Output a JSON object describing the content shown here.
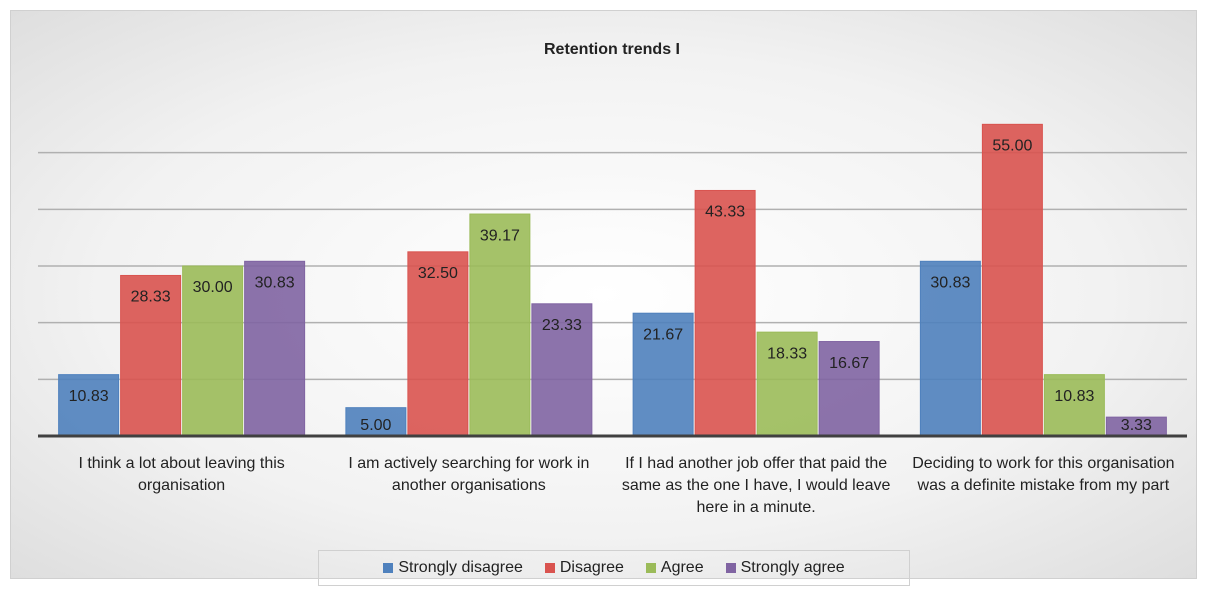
{
  "chart_data": {
    "type": "bar",
    "title": "Retention trends I",
    "categories": [
      "I think a lot about leaving this organisation",
      "I am actively searching for work in another organisations",
      "If I had another job offer that paid the same as the one I have, I would leave here in a minute.",
      "Deciding to work for this organisation was a definite mistake from my part"
    ],
    "series": [
      {
        "name": "Strongly disagree",
        "color": "#4f81bd",
        "values": [
          10.83,
          5,
          21.67,
          30.83
        ],
        "value_labels": [
          "10.83",
          "5.00",
          "21.67",
          "30.83"
        ]
      },
      {
        "name": "Disagree",
        "color": "#d9534f",
        "values": [
          28.33,
          32.5,
          43.33,
          55
        ],
        "value_labels": [
          "28.33",
          "32.50",
          "43.33",
          "55.00"
        ]
      },
      {
        "name": "Agree",
        "color": "#9bbb59",
        "values": [
          30,
          39.17,
          18.33,
          10.83
        ],
        "value_labels": [
          "30.00",
          "39.17",
          "18.33",
          "10.83"
        ]
      },
      {
        "name": "Strongly agree",
        "color": "#8064a2",
        "values": [
          30.83,
          23.33,
          16.67,
          3.33
        ],
        "value_labels": [
          "30.83",
          "23.33",
          "16.67",
          "3.33"
        ]
      }
    ],
    "ylim": [
      0,
      60
    ],
    "yticks": [
      0,
      10,
      20,
      30,
      40,
      50
    ],
    "grid": true,
    "legend": "bottom"
  }
}
